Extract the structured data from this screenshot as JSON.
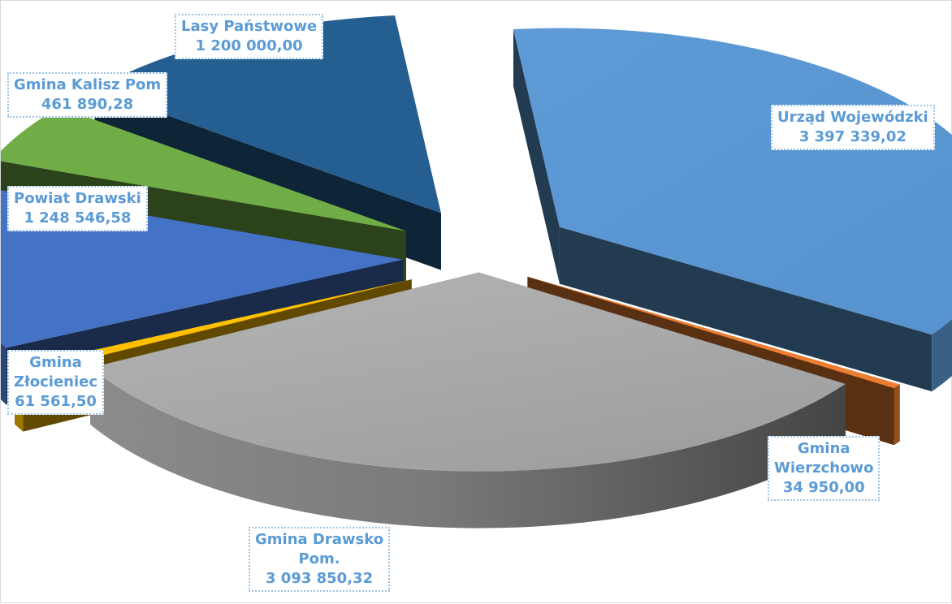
{
  "chart_data": {
    "type": "pie",
    "style": "3d-exploded",
    "slices": [
      {
        "label_lines": [
          "Urząd Wojewódzki"
        ],
        "value_text": "3 397 339,02",
        "value": 3397339.02,
        "color": "#5b9bd5"
      },
      {
        "label_lines": [
          "Gmina",
          "Wierzchowo"
        ],
        "value_text": "34 950,00",
        "value": 34950.0,
        "color": "#ed7d31"
      },
      {
        "label_lines": [
          "Gmina Drawsko",
          "Pom."
        ],
        "value_text": "3 093 850,32",
        "value": 3093850.32,
        "color": "#a5a5a5"
      },
      {
        "label_lines": [
          "Gmina",
          "Złocieniec"
        ],
        "value_text": "61 561,50",
        "value": 61561.5,
        "color": "#ffc000"
      },
      {
        "label_lines": [
          "Powiat Drawski"
        ],
        "value_text": "1 248 546,58",
        "value": 1248546.58,
        "color": "#4472c4"
      },
      {
        "label_lines": [
          "Gmina Kalisz Pom"
        ],
        "value_text": "461 890,28",
        "value": 461890.28,
        "color": "#70ad47"
      },
      {
        "label_lines": [
          "Lasy Państwowe"
        ],
        "value_text": "1 200 000,00",
        "value": 1200000.0,
        "color": "#255e91"
      }
    ],
    "data_label_color": "#5b9bd5",
    "legend": "none"
  }
}
